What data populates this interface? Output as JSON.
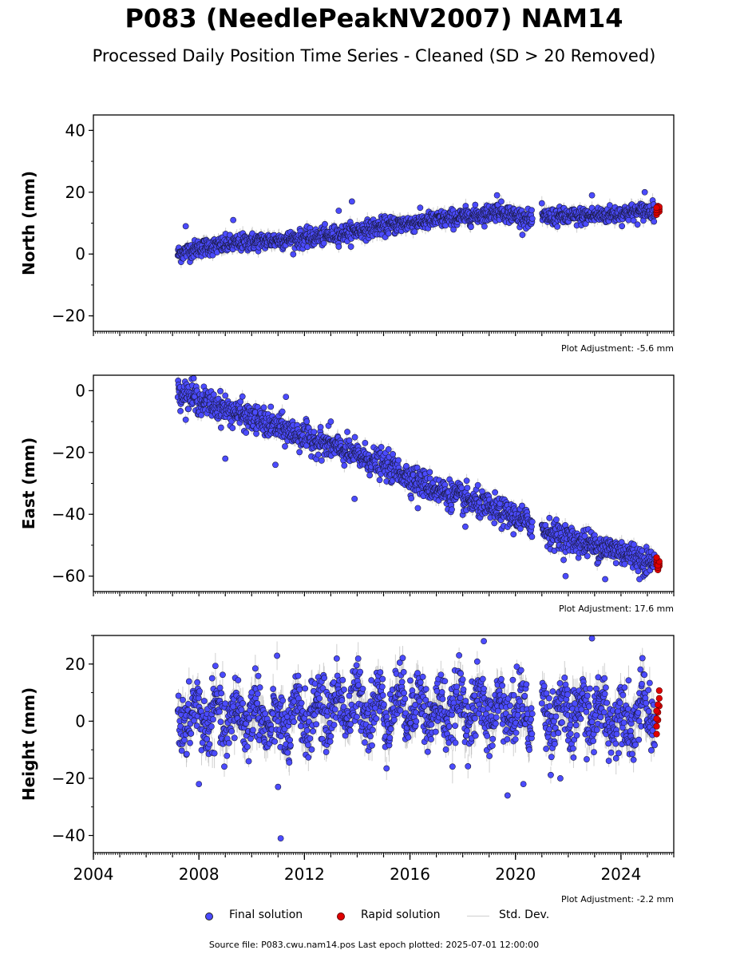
{
  "header": {
    "title": "P083 (NeedlePeakNV2007) NAM14",
    "subtitle": "Processed Daily Position Time Series - Cleaned (SD > 20 Removed)"
  },
  "legend": {
    "final_label": "Final solution",
    "rapid_label": "Rapid solution",
    "std_label": "Std. Dev."
  },
  "footer": {
    "source": "Source file: P083.cwu.nam14.pos  Last epoch plotted: 2025-07-01 12:00:00"
  },
  "colors": {
    "final": "#4b4bff",
    "rapid": "#e00000",
    "std": "#b0b0b0"
  },
  "chart_data": [
    {
      "type": "scatter",
      "ylabel": "North (mm)",
      "xlim": [
        2004,
        2026
      ],
      "ylim": [
        -25,
        45
      ],
      "yticks": [
        -20,
        0,
        20,
        40
      ],
      "adjustment": "Plot Adjustment: -5.6 mm",
      "show_xtick_labels": false,
      "series": [
        {
          "kind": "final",
          "x": [
            2007.2,
            2008.0,
            2009.0,
            2010.0,
            2011.0,
            2012.0,
            2013.0,
            2014.0,
            2015.0,
            2016.0,
            2017.0,
            2018.0,
            2018.9,
            2019.3,
            2020.0,
            2020.6,
            2021.0,
            2022.0,
            2023.0,
            2024.0,
            2025.0,
            2025.3
          ],
          "y": [
            0,
            2,
            3,
            4,
            4.5,
            5,
            6,
            7.5,
            9,
            10,
            11,
            12,
            13,
            14,
            12.5,
            11,
            12,
            12,
            12.5,
            13,
            14,
            14
          ]
        },
        {
          "kind": "rapid",
          "x": [
            2025.35,
            2025.4,
            2025.45
          ],
          "y": [
            14,
            15,
            14.5
          ]
        }
      ],
      "outliers": {
        "x": [
          2007.5,
          2009.3,
          2013.3,
          2013.8,
          2019.3,
          2022.9,
          2024.9
        ],
        "y": [
          9,
          11,
          14,
          17,
          19,
          19,
          20
        ]
      }
    },
    {
      "type": "scatter",
      "ylabel": "East (mm)",
      "xlim": [
        2004,
        2026
      ],
      "ylim": [
        -65,
        5
      ],
      "yticks": [
        -60,
        -40,
        -20,
        0
      ],
      "adjustment": "Plot Adjustment: 17.6 mm",
      "show_xtick_labels": false,
      "series": [
        {
          "kind": "final",
          "x": [
            2007.2,
            2008.0,
            2009.0,
            2010.0,
            2011.0,
            2012.0,
            2013.0,
            2014.0,
            2015.0,
            2016.0,
            2017.0,
            2018.0,
            2019.0,
            2020.0,
            2020.6,
            2021.0,
            2022.0,
            2023.0,
            2024.0,
            2025.0,
            2025.3
          ],
          "y": [
            0,
            -3,
            -6,
            -9,
            -12,
            -15,
            -18,
            -21,
            -24,
            -28,
            -32,
            -35,
            -38,
            -41,
            -43,
            -45,
            -48,
            -50,
            -52,
            -55,
            -56
          ]
        },
        {
          "kind": "rapid",
          "x": [
            2025.35,
            2025.4,
            2025.45
          ],
          "y": [
            -55,
            -57,
            -56
          ]
        }
      ],
      "outliers": {
        "x": [
          2007.8,
          2009.0,
          2010.9,
          2011.3,
          2013.0,
          2013.9,
          2016.3,
          2018.1,
          2021.9,
          2023.4,
          2024.7
        ],
        "y": [
          4,
          -22,
          -24,
          -2,
          -10,
          -35,
          -38,
          -44,
          -60,
          -61,
          -61
        ]
      }
    },
    {
      "type": "scatter",
      "ylabel": "Height (mm)",
      "xlim": [
        2004,
        2026
      ],
      "ylim": [
        -46,
        30
      ],
      "yticks": [
        -40,
        -20,
        0,
        20
      ],
      "xticks": [
        2004,
        2008,
        2012,
        2016,
        2020,
        2024
      ],
      "adjustment": "Plot Adjustment: -2.2 mm",
      "show_xtick_labels": true,
      "series": [
        {
          "kind": "final",
          "x": [
            2007.2,
            2008.0,
            2009.0,
            2010.0,
            2011.0,
            2012.0,
            2013.0,
            2014.0,
            2015.0,
            2016.0,
            2017.0,
            2018.0,
            2019.0,
            2020.0,
            2020.6,
            2021.0,
            2022.0,
            2023.0,
            2024.0,
            2025.0,
            2025.3
          ],
          "y": [
            0,
            2,
            0,
            3,
            -2,
            2,
            5,
            6,
            4,
            7,
            2,
            5,
            3,
            4,
            2,
            4,
            2,
            3,
            1,
            3,
            3
          ]
        },
        {
          "kind": "rapid",
          "x": [
            2025.35,
            2025.4,
            2025.45
          ],
          "y": [
            0,
            4,
            8
          ]
        }
      ],
      "outliers": {
        "x": [
          2008.0,
          2011.0,
          2011.1,
          2018.8,
          2019.7,
          2020.3,
          2022.9,
          2021.7
        ],
        "y": [
          -22,
          -23,
          -41,
          28,
          -26,
          -22,
          29,
          -20
        ]
      }
    }
  ]
}
